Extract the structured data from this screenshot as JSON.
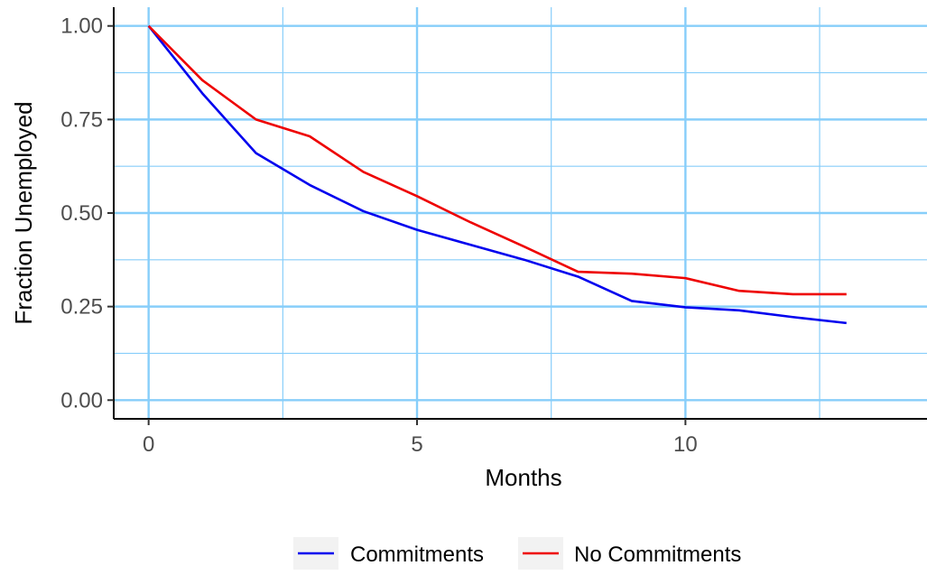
{
  "chart_data": {
    "type": "line",
    "title": "",
    "xlabel": "Months",
    "ylabel": "Fraction Unemployed",
    "xlim": [
      -0.65,
      14.5
    ],
    "ylim": [
      -0.05,
      1.05
    ],
    "x_ticks": [
      0,
      5,
      10
    ],
    "x_tick_labels": [
      "0",
      "5",
      "10"
    ],
    "x_minor_ticks": [
      2.5,
      7.5,
      12.5
    ],
    "y_ticks": [
      0,
      0.25,
      0.5,
      0.75,
      1.0
    ],
    "y_tick_labels": [
      "0.00",
      "0.25",
      "0.50",
      "0.75",
      "1.00"
    ],
    "y_minor_ticks": [
      0.125,
      0.375,
      0.625,
      0.875
    ],
    "grid": true,
    "grid_color": "#87CEFA",
    "legend_position": "bottom",
    "series": [
      {
        "name": "Commitments",
        "color": "#0000EE",
        "x": [
          0,
          1,
          2,
          3,
          4,
          5,
          6,
          7,
          8,
          9,
          10,
          11,
          12,
          13
        ],
        "values": [
          1.0,
          0.82,
          0.66,
          0.575,
          0.505,
          0.455,
          0.415,
          0.375,
          0.33,
          0.265,
          0.248,
          0.24,
          0.222,
          0.206
        ]
      },
      {
        "name": "No Commitments",
        "color": "#EE0000",
        "x": [
          0,
          1,
          2,
          3,
          4,
          5,
          6,
          7,
          8,
          9,
          10,
          11,
          12,
          13
        ],
        "values": [
          1.0,
          0.855,
          0.75,
          0.705,
          0.61,
          0.545,
          0.475,
          0.41,
          0.343,
          0.338,
          0.326,
          0.292,
          0.283,
          0.283
        ]
      }
    ]
  }
}
